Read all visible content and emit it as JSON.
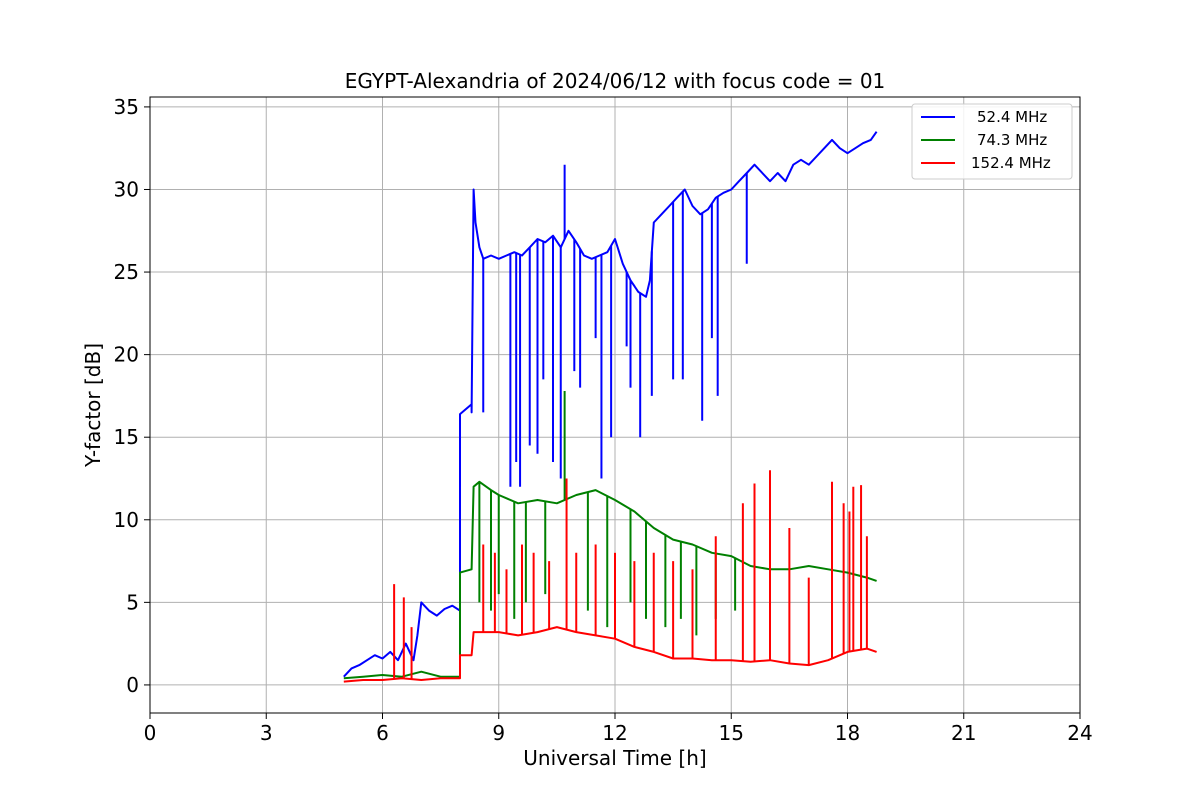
{
  "chart_data": {
    "type": "line",
    "title": "EGYPT-Alexandria of 2024/06/12 with focus code = 01",
    "xlabel": "Universal Time [h]",
    "ylabel": "Y-factor [dB]",
    "xlim": [
      0,
      24
    ],
    "ylim": [
      -1.7,
      35.6
    ],
    "xticks": [
      0,
      3,
      6,
      9,
      12,
      15,
      18,
      21,
      24
    ],
    "xtick_labels": [
      "0",
      "3",
      "6",
      "9",
      "12",
      "15",
      "18",
      "21",
      "24"
    ],
    "yticks": [
      0,
      5,
      10,
      15,
      20,
      25,
      30,
      35
    ],
    "ytick_labels": [
      "0",
      "5",
      "10",
      "15",
      "20",
      "25",
      "30",
      "35"
    ],
    "grid": true,
    "legend_position": "top-right",
    "series": [
      {
        "name": "52.4 MHz",
        "color": "#0000ff",
        "x": [
          5.0,
          5.2,
          5.4,
          5.6,
          5.8,
          6.0,
          6.2,
          6.4,
          6.6,
          6.8,
          6.9,
          7.0,
          7.2,
          7.4,
          7.6,
          7.8,
          8.0,
          8.0,
          8.3,
          8.3,
          8.35,
          8.4,
          8.5,
          8.6,
          8.8,
          9.0,
          9.2,
          9.4,
          9.6,
          9.8,
          10.0,
          10.2,
          10.4,
          10.6,
          10.8,
          11.0,
          11.2,
          11.4,
          11.6,
          11.8,
          12.0,
          12.2,
          12.4,
          12.6,
          12.8,
          12.9,
          13.0,
          13.2,
          13.4,
          13.6,
          13.8,
          14.0,
          14.2,
          14.4,
          14.6,
          14.8,
          15.0,
          15.2,
          15.4,
          15.6,
          15.8,
          16.0,
          16.2,
          16.4,
          16.6,
          16.8,
          17.0,
          17.2,
          17.4,
          17.6,
          17.8,
          18.0,
          18.2,
          18.4,
          18.6,
          18.75
        ],
        "y": [
          0.5,
          1.0,
          1.2,
          1.5,
          1.8,
          1.6,
          2.0,
          1.5,
          2.5,
          1.5,
          3.0,
          5.0,
          4.5,
          4.2,
          4.6,
          4.8,
          4.5,
          16.4,
          17.0,
          16.5,
          30.0,
          28.0,
          26.5,
          25.8,
          26.0,
          25.8,
          26.0,
          26.2,
          26.0,
          26.5,
          27.0,
          26.8,
          27.2,
          26.5,
          27.5,
          26.8,
          26.0,
          25.8,
          26.0,
          26.2,
          27.0,
          25.5,
          24.5,
          23.8,
          23.5,
          24.5,
          28.0,
          28.5,
          29.0,
          29.5,
          30.0,
          29.0,
          28.5,
          28.8,
          29.5,
          29.8,
          30.0,
          30.5,
          31.0,
          31.5,
          31.0,
          30.5,
          31.0,
          30.5,
          31.5,
          31.8,
          31.5,
          32.0,
          32.5,
          33.0,
          32.5,
          32.2,
          32.5,
          32.8,
          33.0,
          33.5
        ]
      },
      {
        "name": "74.3 MHz",
        "color": "#008000",
        "x": [
          5.0,
          5.5,
          6.0,
          6.5,
          7.0,
          7.5,
          8.0,
          8.0,
          8.3,
          8.35,
          8.5,
          8.8,
          9.0,
          9.5,
          10.0,
          10.5,
          11.0,
          11.5,
          12.0,
          12.5,
          13.0,
          13.5,
          14.0,
          14.5,
          15.0,
          15.5,
          16.0,
          16.5,
          17.0,
          17.5,
          18.0,
          18.5,
          18.75
        ],
        "y": [
          0.4,
          0.5,
          0.6,
          0.5,
          0.8,
          0.5,
          0.5,
          6.8,
          7.0,
          12.0,
          12.3,
          11.8,
          11.5,
          11.0,
          11.2,
          11.0,
          11.5,
          11.8,
          11.2,
          10.5,
          9.5,
          8.8,
          8.5,
          8.0,
          7.8,
          7.2,
          7.0,
          7.0,
          7.2,
          7.0,
          6.8,
          6.5,
          6.3
        ]
      },
      {
        "name": "152.4 MHz",
        "color": "#ff0000",
        "x": [
          5.0,
          5.5,
          6.0,
          6.5,
          7.0,
          7.5,
          8.0,
          8.0,
          8.3,
          8.35,
          8.5,
          9.0,
          9.5,
          10.0,
          10.5,
          11.0,
          11.5,
          12.0,
          12.5,
          13.0,
          13.5,
          14.0,
          14.5,
          15.0,
          15.5,
          16.0,
          16.5,
          17.0,
          17.5,
          18.0,
          18.5,
          18.75
        ],
        "y": [
          0.2,
          0.3,
          0.3,
          0.4,
          0.3,
          0.4,
          0.4,
          1.8,
          1.8,
          3.2,
          3.2,
          3.2,
          3.0,
          3.2,
          3.5,
          3.2,
          3.0,
          2.8,
          2.3,
          2.0,
          1.6,
          1.6,
          1.5,
          1.5,
          1.4,
          1.5,
          1.3,
          1.2,
          1.5,
          2.0,
          2.2,
          2.0
        ]
      }
    ],
    "spikes": [
      {
        "series": "52.4 MHz",
        "x": [
          8.6,
          9.3,
          9.45,
          9.55,
          9.8,
          10.0,
          10.15,
          10.4,
          10.6,
          10.7,
          10.95,
          11.1,
          11.5,
          11.65,
          11.9,
          12.3,
          12.4,
          12.65,
          12.95,
          13.5,
          13.75,
          14.25,
          14.5,
          14.65,
          15.4
        ],
        "y": [
          16.5,
          12.0,
          13.5,
          12.0,
          14.5,
          14.0,
          18.5,
          13.5,
          12.5,
          31.5,
          19.0,
          18.0,
          21.0,
          12.5,
          15.0,
          20.5,
          18.0,
          15.0,
          17.5,
          18.5,
          18.5,
          16.0,
          21.0,
          17.5,
          25.5
        ]
      },
      {
        "series": "74.3 MHz",
        "x": [
          8.5,
          8.8,
          9.0,
          9.4,
          9.7,
          10.2,
          10.7,
          11.3,
          11.8,
          12.4,
          12.8,
          13.3,
          13.7,
          14.1,
          14.6,
          15.1
        ],
        "y": [
          5.0,
          4.5,
          5.5,
          4.0,
          5.0,
          5.5,
          17.8,
          4.5,
          3.5,
          5.0,
          4.0,
          3.5,
          4.0,
          3.0,
          4.0,
          4.5
        ]
      },
      {
        "series": "152.4 MHz",
        "x": [
          6.3,
          6.55,
          6.75,
          8.6,
          8.9,
          9.2,
          9.6,
          9.9,
          10.3,
          10.75,
          11.0,
          11.5,
          12.0,
          12.5,
          13.0,
          13.5,
          14.0,
          14.6,
          15.3,
          15.6,
          16.0,
          16.5,
          17.0,
          17.6,
          17.9,
          18.05,
          18.15,
          18.35,
          18.5
        ],
        "y": [
          6.1,
          5.3,
          3.5,
          8.5,
          8.0,
          7.0,
          8.5,
          8.0,
          7.5,
          12.5,
          8.0,
          8.5,
          8.0,
          7.5,
          8.0,
          7.5,
          7.0,
          9.0,
          11.0,
          12.2,
          13.0,
          9.5,
          6.5,
          12.3,
          11.0,
          10.5,
          12.0,
          12.1,
          9.0
        ]
      }
    ]
  }
}
